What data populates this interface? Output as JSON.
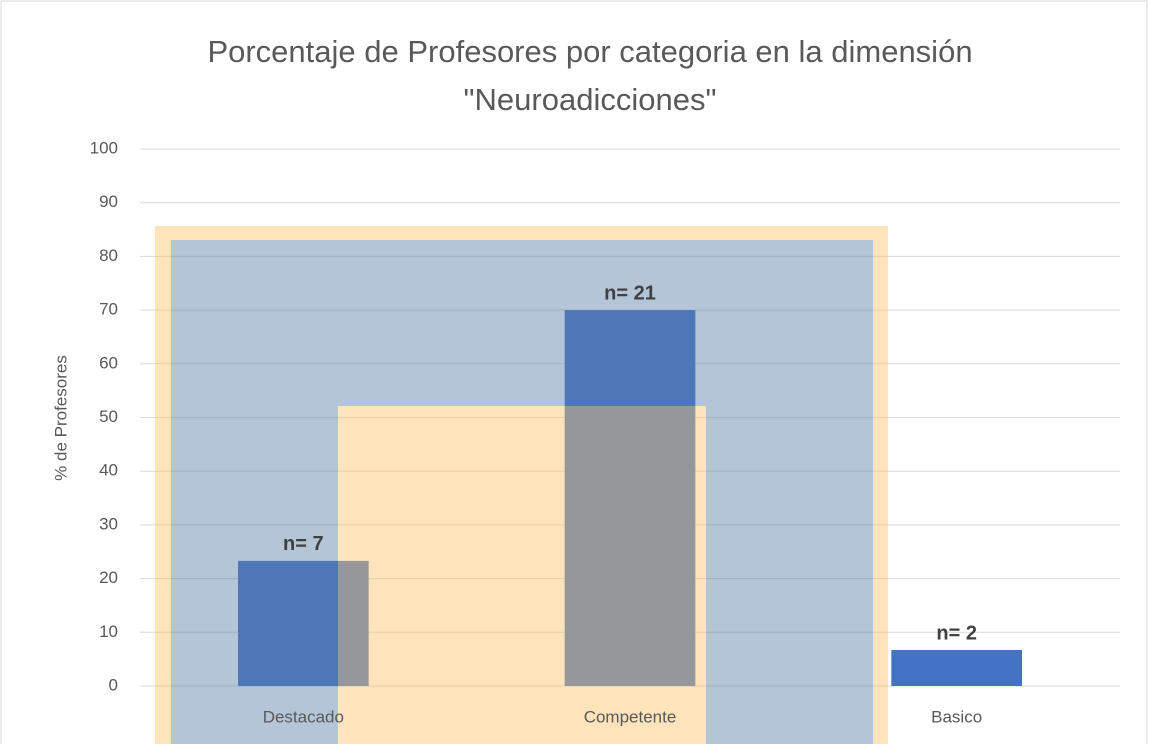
{
  "chart_data": {
    "type": "bar",
    "title": "Porcentaje de Profesores por categoria en la dimensión \"Neuroadicciones\"",
    "y_label": "% de Profesores",
    "categories": [
      "Destacado",
      "Competente",
      "Basico"
    ],
    "values": [
      23.3,
      70,
      6.7
    ],
    "annotations": [
      "n= 7",
      "n= 21",
      "n= 2"
    ],
    "color": "#4472c4",
    "ylim": [
      0,
      100
    ],
    "yticks": [
      0,
      10,
      20,
      30,
      40,
      50,
      60,
      70,
      80,
      90,
      100
    ],
    "grid": true
  }
}
